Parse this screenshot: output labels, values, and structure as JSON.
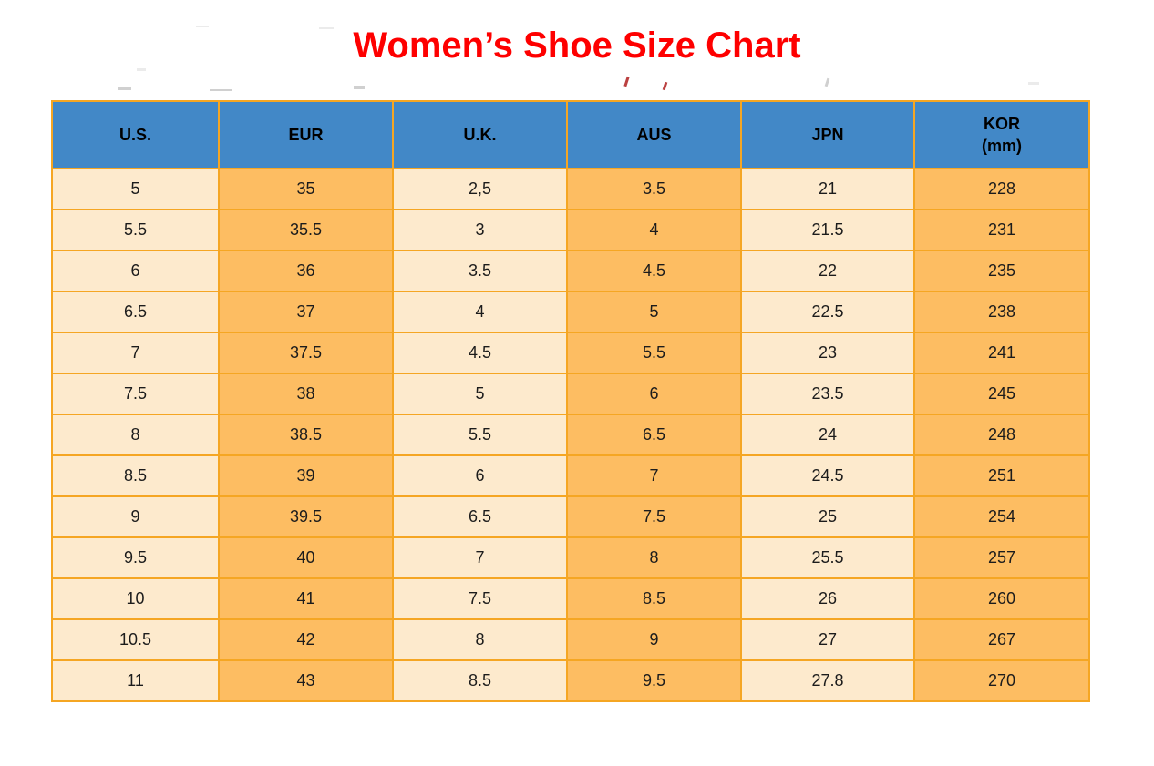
{
  "title": "Women’s Shoe Size Chart",
  "colors": {
    "title_red": "#fe0000",
    "header_blue": "#4288c7",
    "cell_cream": "#fdeacd",
    "cell_orange": "#fdbd62",
    "border_orange": "#f5a623"
  },
  "table": {
    "headers": [
      {
        "label": "U.S.",
        "sublabel": ""
      },
      {
        "label": "EUR",
        "sublabel": ""
      },
      {
        "label": "U.K.",
        "sublabel": ""
      },
      {
        "label": "AUS",
        "sublabel": ""
      },
      {
        "label": "JPN",
        "sublabel": ""
      },
      {
        "label": "KOR",
        "sublabel": "(mm)"
      }
    ]
  },
  "chart_data": {
    "type": "table",
    "title": "Women’s Shoe Size Chart",
    "columns": [
      "U.S.",
      "EUR",
      "U.K.",
      "AUS",
      "JPN",
      "KOR (mm)"
    ],
    "rows": [
      [
        "5",
        "35",
        "2,5",
        "3.5",
        "21",
        "228"
      ],
      [
        "5.5",
        "35.5",
        "3",
        "4",
        "21.5",
        "231"
      ],
      [
        "6",
        "36",
        "3.5",
        "4.5",
        "22",
        "235"
      ],
      [
        "6.5",
        "37",
        "4",
        "5",
        "22.5",
        "238"
      ],
      [
        "7",
        "37.5",
        "4.5",
        "5.5",
        "23",
        "241"
      ],
      [
        "7.5",
        "38",
        "5",
        "6",
        "23.5",
        "245"
      ],
      [
        "8",
        "38.5",
        "5.5",
        "6.5",
        "24",
        "248"
      ],
      [
        "8.5",
        "39",
        "6",
        "7",
        "24.5",
        "251"
      ],
      [
        "9",
        "39.5",
        "6.5",
        "7.5",
        "25",
        "254"
      ],
      [
        "9.5",
        "40",
        "7",
        "8",
        "25.5",
        "257"
      ],
      [
        "10",
        "41",
        "7.5",
        "8.5",
        "26",
        "260"
      ],
      [
        "10.5",
        "42",
        "8",
        "9",
        "27",
        "267"
      ],
      [
        "11",
        "43",
        "8.5",
        "9.5",
        "27.8",
        "270"
      ]
    ]
  }
}
